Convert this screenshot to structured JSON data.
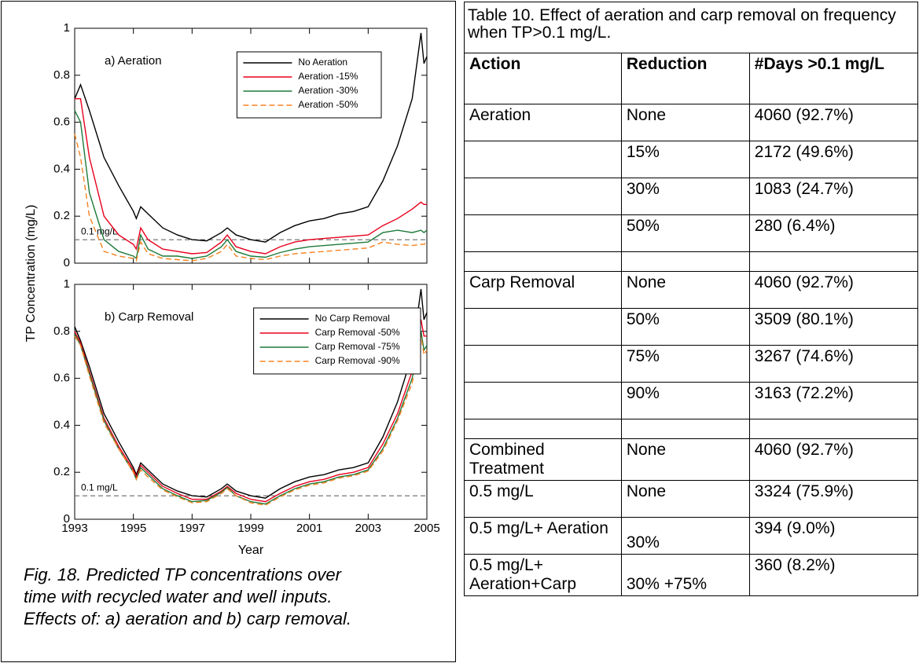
{
  "chart_data": [
    {
      "type": "line",
      "panel_label": "a) Aeration",
      "y_label": "TP Concentration (mg/L)",
      "xlim": [
        1993,
        2005
      ],
      "xticks": [
        1993,
        1995,
        1997,
        1999,
        2001,
        2003,
        2005
      ],
      "show_x_tick_labels": false,
      "ylim": [
        0,
        1
      ],
      "yticks": [
        0,
        0.2,
        0.4,
        0.6,
        0.8,
        1
      ],
      "reference_line": {
        "value": 0.1,
        "label": "0.1 mg/L"
      },
      "legend": "upper right",
      "x": [
        1993.0,
        1993.2,
        1993.5,
        1994,
        1994.5,
        1995,
        1995.1,
        1995.25,
        1995.5,
        1996,
        1996.5,
        1997,
        1997.5,
        1998,
        1998.2,
        1998.5,
        1999,
        1999.5,
        2000,
        2000.5,
        2001,
        2001.5,
        2002,
        2002.5,
        2003,
        2003.5,
        2004,
        2004.5,
        2004.8,
        2004.9,
        2005
      ],
      "series": [
        {
          "name": "No Aeration",
          "color": "#000000",
          "style": "solid",
          "values": [
            0.7,
            0.76,
            0.65,
            0.45,
            0.33,
            0.22,
            0.19,
            0.24,
            0.21,
            0.15,
            0.12,
            0.1,
            0.095,
            0.13,
            0.15,
            0.12,
            0.1,
            0.09,
            0.13,
            0.16,
            0.18,
            0.19,
            0.21,
            0.22,
            0.24,
            0.35,
            0.5,
            0.7,
            0.98,
            0.85,
            0.88
          ]
        },
        {
          "name": "Aeration -15%",
          "color": "#e8001c",
          "style": "solid",
          "values": [
            0.7,
            0.7,
            0.45,
            0.2,
            0.12,
            0.08,
            0.06,
            0.15,
            0.1,
            0.06,
            0.05,
            0.04,
            0.045,
            0.09,
            0.12,
            0.07,
            0.05,
            0.04,
            0.07,
            0.09,
            0.1,
            0.105,
            0.11,
            0.115,
            0.12,
            0.16,
            0.19,
            0.23,
            0.26,
            0.25,
            0.25
          ]
        },
        {
          "name": "Aeration -30%",
          "color": "#1e7a3a",
          "style": "solid",
          "values": [
            0.65,
            0.6,
            0.3,
            0.1,
            0.05,
            0.03,
            0.02,
            0.12,
            0.06,
            0.03,
            0.03,
            0.02,
            0.03,
            0.07,
            0.1,
            0.05,
            0.03,
            0.025,
            0.045,
            0.06,
            0.07,
            0.075,
            0.08,
            0.085,
            0.09,
            0.13,
            0.14,
            0.13,
            0.14,
            0.13,
            0.14
          ]
        },
        {
          "name": "Aeration -50%",
          "color": "#f58220",
          "style": "dashed",
          "values": [
            0.55,
            0.45,
            0.2,
            0.05,
            0.03,
            0.02,
            0.01,
            0.09,
            0.04,
            0.02,
            0.015,
            0.01,
            0.02,
            0.05,
            0.08,
            0.03,
            0.02,
            0.015,
            0.03,
            0.04,
            0.045,
            0.05,
            0.055,
            0.06,
            0.065,
            0.09,
            0.08,
            0.075,
            0.08,
            0.08,
            0.09
          ]
        }
      ]
    },
    {
      "type": "line",
      "panel_label": "b) Carp Removal",
      "x_label": "Year",
      "xlim": [
        1993,
        2005
      ],
      "xticks": [
        1993,
        1995,
        1997,
        1999,
        2001,
        2003,
        2005
      ],
      "show_x_tick_labels": true,
      "ylim": [
        0,
        1
      ],
      "yticks": [
        0,
        0.2,
        0.4,
        0.6,
        0.8,
        1
      ],
      "reference_line": {
        "value": 0.1,
        "label": "0.1 mg/L"
      },
      "legend": "upper right",
      "x": [
        1993.0,
        1993.2,
        1993.5,
        1994,
        1994.5,
        1995,
        1995.1,
        1995.25,
        1995.5,
        1996,
        1996.5,
        1997,
        1997.5,
        1998,
        1998.2,
        1998.5,
        1999,
        1999.5,
        2000,
        2000.5,
        2001,
        2001.5,
        2002,
        2002.5,
        2003,
        2003.5,
        2004,
        2004.5,
        2004.8,
        2004.9,
        2005
      ],
      "series": [
        {
          "name": "No Carp Removal",
          "color": "#000000",
          "style": "solid",
          "values": [
            0.82,
            0.76,
            0.65,
            0.45,
            0.33,
            0.22,
            0.19,
            0.24,
            0.21,
            0.15,
            0.12,
            0.1,
            0.095,
            0.13,
            0.15,
            0.12,
            0.1,
            0.09,
            0.13,
            0.16,
            0.18,
            0.19,
            0.21,
            0.22,
            0.24,
            0.35,
            0.5,
            0.7,
            0.98,
            0.85,
            0.88
          ]
        },
        {
          "name": "Carp Removal -50%",
          "color": "#e8001c",
          "style": "solid",
          "values": [
            0.8,
            0.75,
            0.63,
            0.43,
            0.31,
            0.21,
            0.18,
            0.23,
            0.2,
            0.14,
            0.11,
            0.085,
            0.085,
            0.12,
            0.14,
            0.11,
            0.085,
            0.075,
            0.11,
            0.14,
            0.16,
            0.17,
            0.19,
            0.2,
            0.22,
            0.32,
            0.45,
            0.63,
            0.85,
            0.78,
            0.78
          ]
        },
        {
          "name": "Carp Removal -75%",
          "color": "#1e7a3a",
          "style": "solid",
          "values": [
            0.79,
            0.74,
            0.62,
            0.42,
            0.3,
            0.2,
            0.17,
            0.22,
            0.19,
            0.13,
            0.1,
            0.075,
            0.08,
            0.115,
            0.135,
            0.1,
            0.075,
            0.065,
            0.1,
            0.13,
            0.15,
            0.16,
            0.18,
            0.19,
            0.21,
            0.3,
            0.43,
            0.6,
            0.8,
            0.72,
            0.74
          ]
        },
        {
          "name": "Carp Removal -90%",
          "color": "#f58220",
          "style": "dashed",
          "values": [
            0.78,
            0.74,
            0.61,
            0.41,
            0.3,
            0.2,
            0.17,
            0.21,
            0.18,
            0.125,
            0.095,
            0.07,
            0.075,
            0.11,
            0.13,
            0.1,
            0.07,
            0.06,
            0.095,
            0.125,
            0.145,
            0.155,
            0.175,
            0.185,
            0.205,
            0.29,
            0.42,
            0.58,
            0.78,
            0.7,
            0.72
          ]
        }
      ]
    }
  ],
  "caption": "Fig. 18. Predicted TP concentrations over time with recycled water and well inputs. Effects of: a) aeration and b) carp removal.",
  "table": {
    "title": "Table 10. Effect of aeration and carp removal on frequency when TP>0.1 mg/L.",
    "header": [
      "Action",
      "Reduction",
      "#Days >0.1 mg/L"
    ],
    "rows": [
      [
        "Aeration",
        "None",
        "4060 (92.7%)"
      ],
      [
        null,
        "15%",
        "2172 (49.6%)"
      ],
      [
        null,
        "30%",
        "1083 (24.7%)"
      ],
      [
        null,
        "50%",
        "280 (6.4%)"
      ],
      [
        null,
        null,
        null
      ],
      [
        "Carp Removal",
        "None",
        "4060 (92.7%)"
      ],
      [
        null,
        "50%",
        "3509 (80.1%)"
      ],
      [
        null,
        "75%",
        "3267 (74.6%)"
      ],
      [
        null,
        "90%",
        "3163 (72.2%)"
      ],
      [
        null,
        null,
        null
      ],
      [
        "Combined Treatment",
        "None",
        "4060 (92.7%)"
      ],
      [
        "0.5 mg/L",
        "None",
        "3324 (75.9%)"
      ],
      [
        "0.5 mg/L+ Aeration",
        "30%",
        "394 (9.0%)"
      ],
      [
        "0.5 mg/L+ Aeration+Carp",
        "30% +75%",
        "360 (8.2%)"
      ]
    ]
  }
}
